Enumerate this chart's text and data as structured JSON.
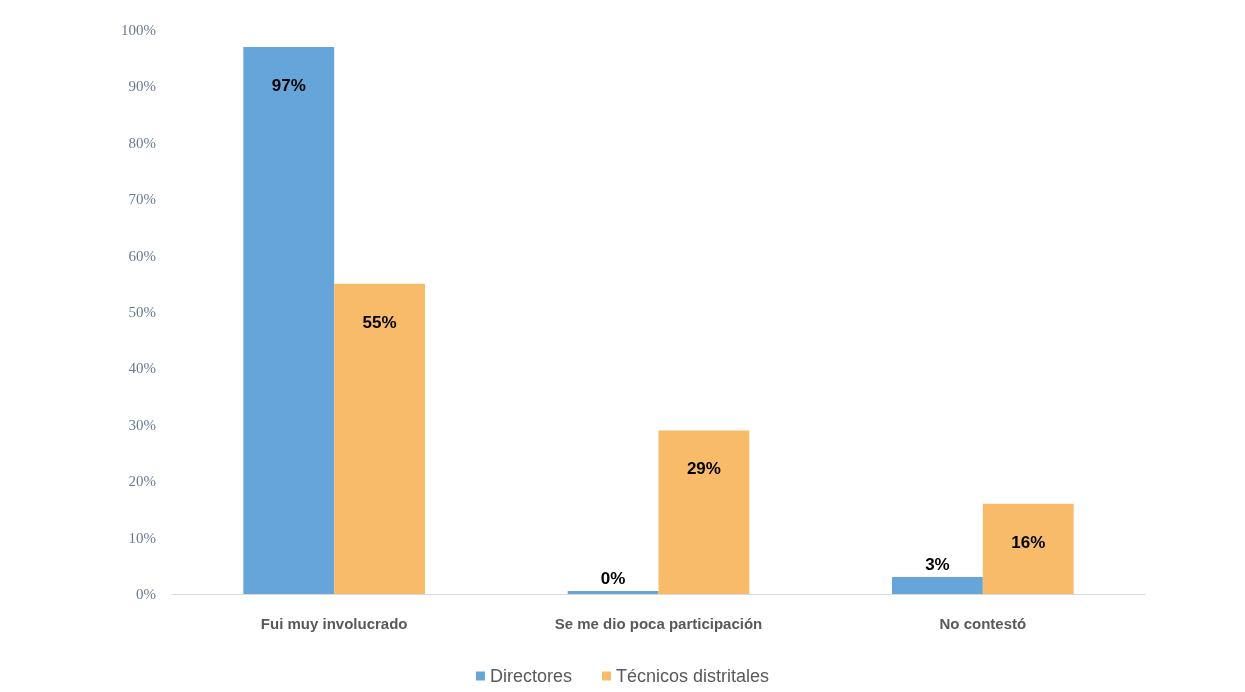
{
  "chart_data": {
    "type": "bar",
    "categories": [
      "Fui muy involucrado",
      "Se me dio poca participación",
      "No contestó"
    ],
    "series": [
      {
        "name": "Directores",
        "color": "#65a5d9",
        "values": [
          97,
          0,
          3
        ],
        "value_labels": [
          "97%",
          "0%",
          "3%"
        ]
      },
      {
        "name": "Técnicos distritales",
        "color": "#f8bb6a",
        "values": [
          55,
          29,
          16
        ],
        "value_labels": [
          "55%",
          "29%",
          "16%"
        ]
      }
    ],
    "ylim": [
      0,
      100
    ],
    "yticks": [
      {
        "value": 0,
        "label": "0%"
      },
      {
        "value": 10,
        "label": "10%"
      },
      {
        "value": 20,
        "label": "20%"
      },
      {
        "value": 30,
        "label": "30%"
      },
      {
        "value": 40,
        "label": "40%"
      },
      {
        "value": 50,
        "label": "50%"
      },
      {
        "value": 60,
        "label": "60%"
      },
      {
        "value": 70,
        "label": "70%"
      },
      {
        "value": 80,
        "label": "80%"
      },
      {
        "value": 90,
        "label": "90%"
      },
      {
        "value": 100,
        "label": "100%"
      }
    ],
    "grid": false,
    "legend": "bottom"
  }
}
